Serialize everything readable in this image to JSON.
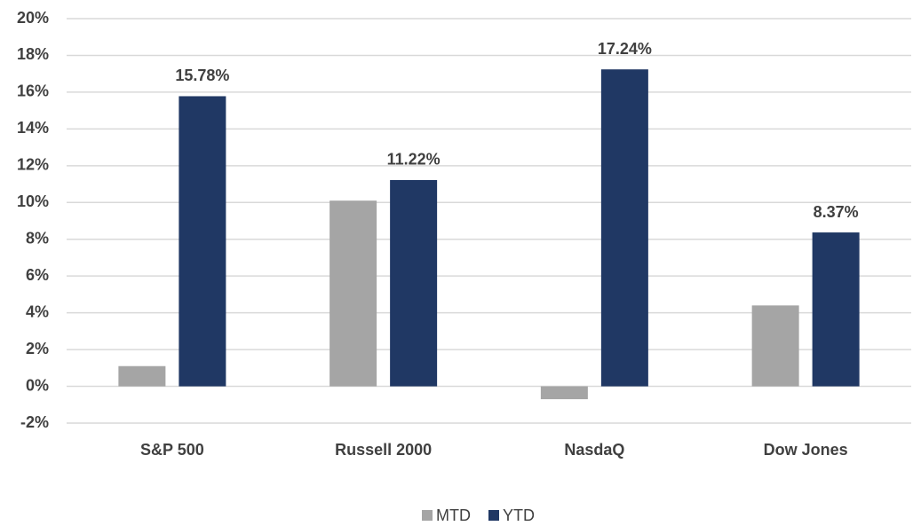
{
  "chart_data": {
    "type": "bar",
    "categories": [
      "S&P 500",
      "Russell 2000",
      "NasdaQ",
      "Dow Jones"
    ],
    "series": [
      {
        "name": "MTD",
        "color": "#a5a5a5",
        "values": [
          1.1,
          10.1,
          -0.7,
          4.4
        ]
      },
      {
        "name": "YTD",
        "color": "#203864",
        "values": [
          15.78,
          11.22,
          17.24,
          8.37
        ],
        "value_labels": [
          "15.78%",
          "11.22%",
          "17.24%",
          "8.37%"
        ]
      }
    ],
    "ylim": [
      -2,
      20
    ],
    "yticks": [
      {
        "value": -2,
        "label": "-2%"
      },
      {
        "value": 0,
        "label": "0%"
      },
      {
        "value": 2,
        "label": "2%"
      },
      {
        "value": 4,
        "label": "4%"
      },
      {
        "value": 6,
        "label": "6%"
      },
      {
        "value": 8,
        "label": "8%"
      },
      {
        "value": 10,
        "label": "10%"
      },
      {
        "value": 12,
        "label": "12%"
      },
      {
        "value": 14,
        "label": "14%"
      },
      {
        "value": 16,
        "label": "16%"
      },
      {
        "value": 18,
        "label": "18%"
      },
      {
        "value": 20,
        "label": "20%"
      }
    ],
    "grid": true,
    "legend": "bottom"
  }
}
